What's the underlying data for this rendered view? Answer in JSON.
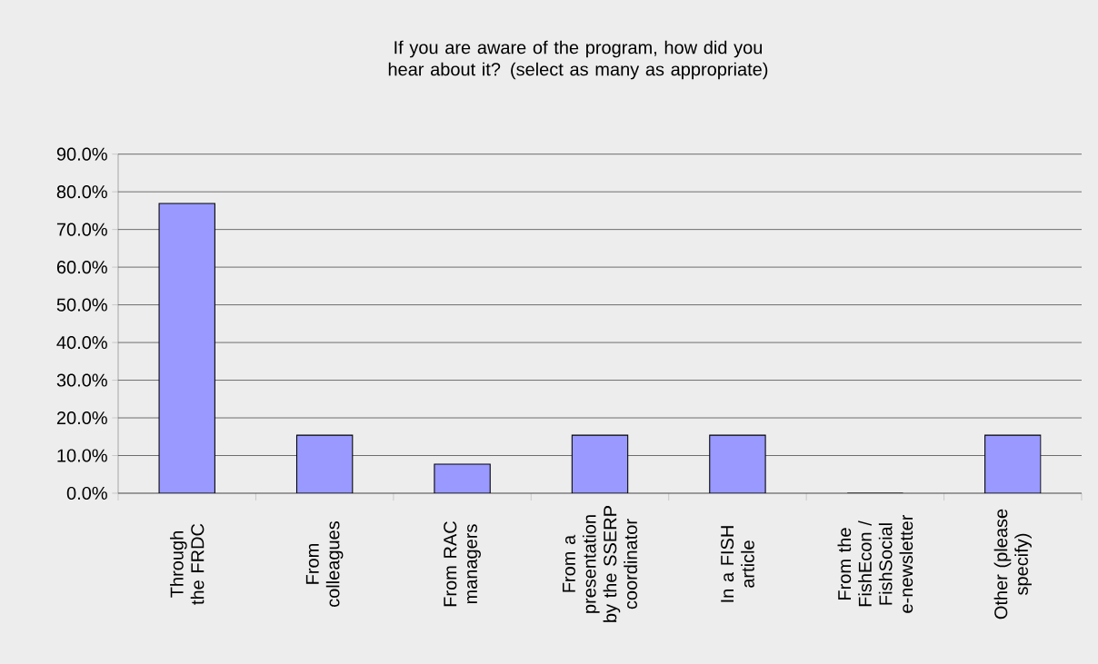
{
  "chart_data": {
    "type": "bar",
    "title": "If you are aware of the program, how did you hear about it? (select as many as appropriate)",
    "categories": [
      "Through the FRDC",
      "From colleagues",
      "From RAC managers",
      "From a presentation by the SSERP coordinator",
      "In a FISH article",
      "From the FishEcon / FishSocial e-newsletter",
      "Other (please specify)"
    ],
    "values": [
      76.9,
      15.4,
      7.7,
      15.4,
      15.4,
      0,
      15.4
    ],
    "color": "#9999ff",
    "ylim": [
      0,
      90
    ],
    "yticks": [
      {
        "value": 0,
        "label": "0.0%"
      },
      {
        "value": 10,
        "label": "10.0%"
      },
      {
        "value": 20,
        "label": "20.0%"
      },
      {
        "value": 30,
        "label": "30.0%"
      },
      {
        "value": 40,
        "label": "40.0%"
      },
      {
        "value": 50,
        "label": "50.0%"
      },
      {
        "value": 60,
        "label": "60.0%"
      },
      {
        "value": 70,
        "label": "70.0%"
      },
      {
        "value": 80,
        "label": "80.0%"
      },
      {
        "value": 90,
        "label": "90.0%"
      }
    ],
    "grid": "y"
  }
}
